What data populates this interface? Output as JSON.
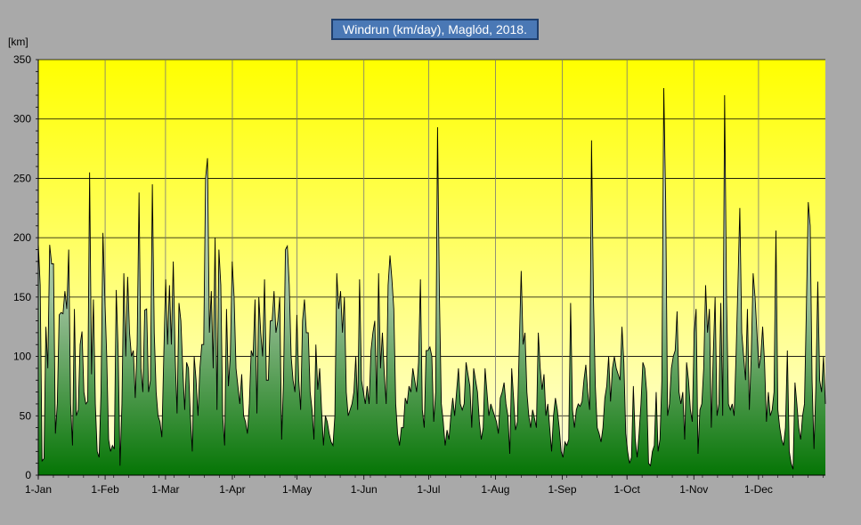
{
  "title": "Windrun (km/day), Maglód, 2018.",
  "unit_label": "[km]",
  "colors": {
    "background": "#a9a9a9",
    "plot_top": "#ffff00",
    "plot_bottom": "#ffffe0",
    "area_top": "#c8d8c0",
    "area_bottom": "#0a7a0a",
    "line": "#000000",
    "title_bg": "#4a78b5"
  },
  "chart_data": {
    "type": "area",
    "title": "Windrun (km/day), Maglód, 2018.",
    "ylabel": "[km]",
    "xlabel": "",
    "ylim": [
      0,
      350
    ],
    "yticks": [
      0,
      50,
      100,
      150,
      200,
      250,
      300,
      350
    ],
    "grid": true,
    "x_start": "2018-01-01",
    "x_end": "2018-12-31",
    "month_ticks": [
      {
        "label": "1-Jan",
        "date": "2018-01-01"
      },
      {
        "label": "1-Feb",
        "date": "2018-02-01"
      },
      {
        "label": "1-Mar",
        "date": "2018-03-01"
      },
      {
        "label": "1-Apr",
        "date": "2018-04-01"
      },
      {
        "label": "1-May",
        "date": "2018-05-01"
      },
      {
        "label": "1-Jun",
        "date": "2018-06-01"
      },
      {
        "label": "1-Jul",
        "date": "2018-07-01"
      },
      {
        "label": "1-Aug",
        "date": "2018-08-01"
      },
      {
        "label": "1-Sep",
        "date": "2018-09-01"
      },
      {
        "label": "1-Oct",
        "date": "2018-10-01"
      },
      {
        "label": "1-Nov",
        "date": "2018-11-01"
      },
      {
        "label": "1-Dec",
        "date": "2018-12-01"
      }
    ],
    "series": [
      {
        "values": [
          195,
          160,
          12,
          14,
          125,
          90,
          194,
          178,
          178,
          35,
          60,
          135,
          137,
          136,
          155,
          140,
          190,
          60,
          25,
          140,
          50,
          55,
          110,
          121,
          70,
          60,
          62,
          255,
          85,
          148,
          60,
          20,
          15,
          70,
          204,
          150,
          100,
          30,
          20,
          25,
          22,
          156,
          105,
          8,
          60,
          170,
          100,
          167,
          120,
          100,
          105,
          65,
          110,
          238,
          90,
          70,
          139,
          140,
          70,
          80,
          245,
          120,
          70,
          50,
          45,
          32,
          100,
          165,
          110,
          160,
          110,
          180,
          100,
          52,
          145,
          130,
          90,
          55,
          95,
          90,
          50,
          20,
          100,
          80,
          50,
          90,
          110,
          110,
          250,
          267,
          120,
          155,
          90,
          200,
          55,
          190,
          160,
          50,
          25,
          140,
          75,
          100,
          180,
          150,
          90,
          75,
          60,
          85,
          50,
          45,
          35,
          60,
          105,
          100,
          148,
          52,
          150,
          120,
          100,
          165,
          80,
          80,
          130,
          130,
          155,
          120,
          130,
          150,
          30,
          80,
          190,
          193,
          160,
          100,
          80,
          70,
          135,
          80,
          55,
          130,
          148,
          120,
          120,
          70,
          55,
          30,
          110,
          72,
          90,
          55,
          25,
          50,
          45,
          35,
          28,
          25,
          50,
          170,
          140,
          155,
          120,
          150,
          70,
          50,
          55,
          60,
          70,
          100,
          55,
          165,
          80,
          70,
          60,
          75,
          60,
          105,
          120,
          130,
          60,
          170,
          90,
          120,
          85,
          60,
          160,
          185,
          165,
          140,
          60,
          35,
          25,
          40,
          40,
          65,
          60,
          75,
          70,
          90,
          80,
          70,
          95,
          165,
          55,
          40,
          105,
          105,
          108,
          100,
          45,
          70,
          293,
          150,
          60,
          45,
          25,
          38,
          30,
          50,
          65,
          50,
          70,
          90,
          60,
          55,
          60,
          95,
          85,
          75,
          40,
          90,
          80,
          70,
          45,
          30,
          40,
          90,
          70,
          50,
          60,
          55,
          50,
          45,
          35,
          65,
          70,
          78,
          60,
          50,
          18,
          90,
          65,
          38,
          45,
          110,
          172,
          110,
          120,
          70,
          50,
          40,
          55,
          48,
          40,
          120,
          90,
          72,
          85,
          50,
          60,
          40,
          20,
          50,
          65,
          55,
          40,
          20,
          15,
          28,
          25,
          30,
          145,
          55,
          40,
          55,
          60,
          58,
          62,
          80,
          93,
          70,
          55,
          282,
          150,
          75,
          40,
          35,
          28,
          40,
          65,
          75,
          100,
          62,
          90,
          100,
          90,
          85,
          80,
          125,
          95,
          35,
          20,
          10,
          15,
          75,
          30,
          15,
          35,
          60,
          95,
          90,
          70,
          10,
          8,
          20,
          25,
          70,
          20,
          30,
          80,
          326,
          230,
          50,
          60,
          90,
          100,
          105,
          138,
          70,
          60,
          70,
          30,
          95,
          80,
          55,
          45,
          120,
          140,
          18,
          55,
          60,
          90,
          160,
          120,
          140,
          40,
          100,
          150,
          50,
          60,
          145,
          50,
          320,
          150,
          60,
          55,
          60,
          50,
          100,
          160,
          225,
          120,
          100,
          80,
          140,
          55,
          100,
          170,
          150,
          120,
          90,
          100,
          125,
          95,
          45,
          70,
          50,
          55,
          70,
          206,
          55,
          40,
          30,
          25,
          40,
          105,
          20,
          10,
          5,
          78,
          60,
          40,
          30,
          50,
          60,
          140,
          230,
          210,
          80,
          22,
          75,
          163,
          80,
          70,
          100,
          60
        ]
      }
    ]
  }
}
